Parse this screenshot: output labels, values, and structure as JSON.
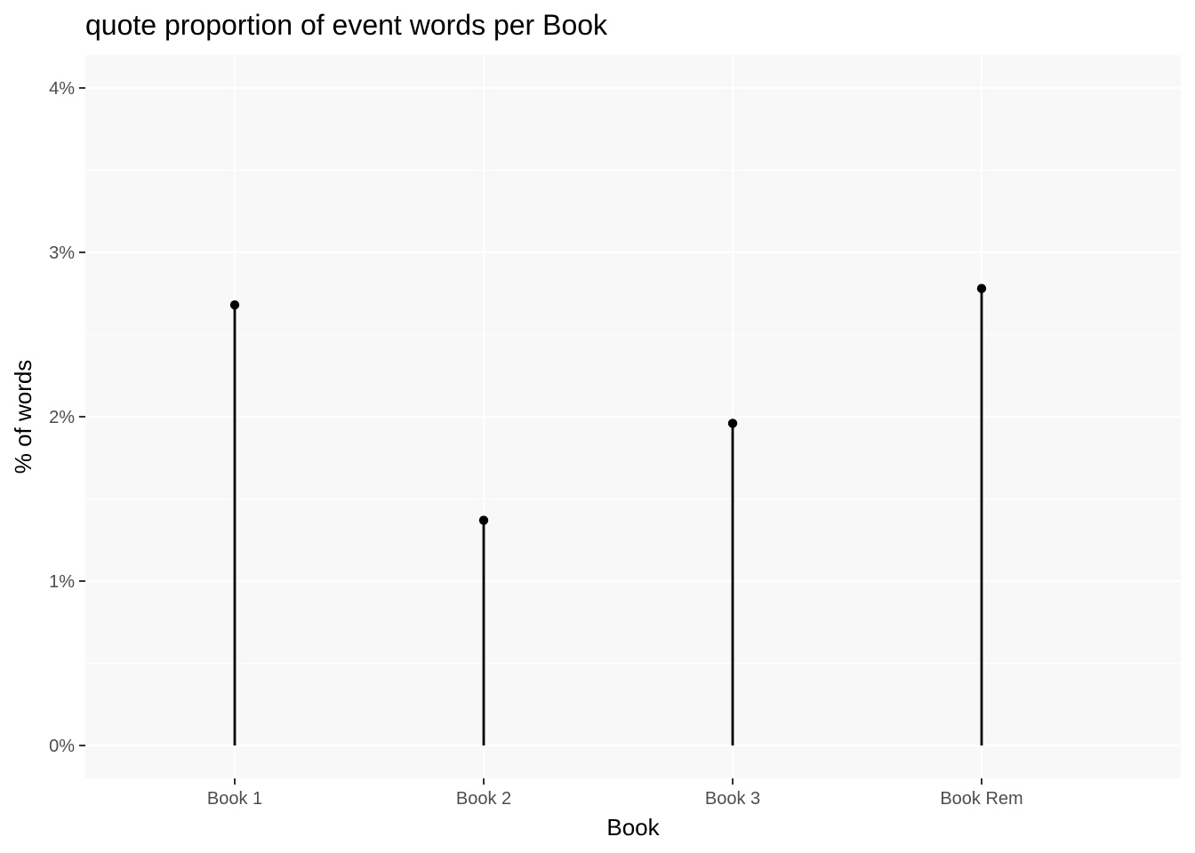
{
  "chart_data": {
    "type": "lollipop",
    "title": "quote proportion of event words per Book",
    "xlabel": "Book",
    "ylabel": "% of words",
    "categories": [
      "Book 1",
      "Book 2",
      "Book 3",
      "Book Rem"
    ],
    "values": [
      2.68,
      1.37,
      1.96,
      2.78
    ],
    "value_unit": "%",
    "ylim": [
      -0.2,
      4.2
    ],
    "yticks": [
      0,
      1,
      2,
      3,
      4
    ],
    "ytick_labels": [
      "0%",
      "1%",
      "2%",
      "3%",
      "4%"
    ],
    "grid": true,
    "legend": "none",
    "colors": {
      "panel_background": "#f8f8f8",
      "grid": "#ffffff",
      "marks": "#000000",
      "tick_text": "#4d4d4d"
    }
  }
}
